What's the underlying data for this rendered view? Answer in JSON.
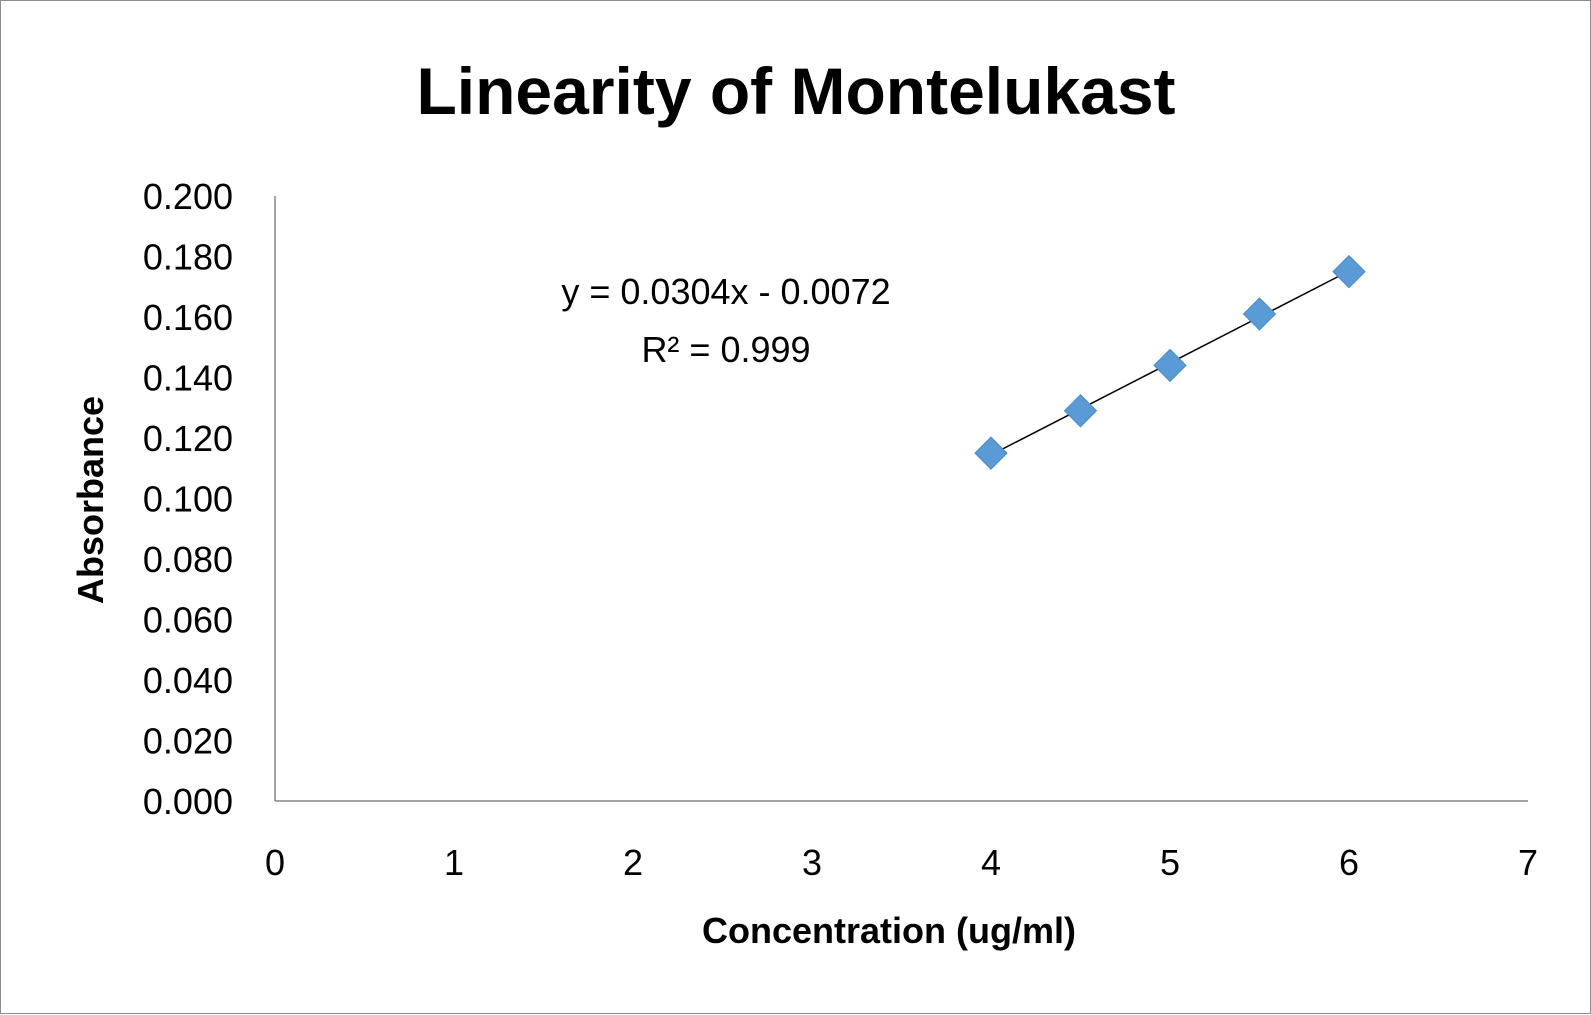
{
  "chart_data": {
    "type": "scatter",
    "title": "Linearity of Montelukast",
    "xlabel": "Concentration (ug/ml)",
    "ylabel": "Absorbance",
    "xlim": [
      0,
      7
    ],
    "ylim": [
      0,
      0.2
    ],
    "x_ticks": [
      "0",
      "1",
      "2",
      "3",
      "4",
      "5",
      "6",
      "7"
    ],
    "y_ticks": [
      "0.000",
      "0.020",
      "0.040",
      "0.060",
      "0.080",
      "0.100",
      "0.120",
      "0.140",
      "0.160",
      "0.180",
      "0.200"
    ],
    "grid": false,
    "legend": "none",
    "series": [
      {
        "x": [
          4,
          4.5,
          5,
          5.5,
          6
        ],
        "y": [
          0.115,
          0.129,
          0.144,
          0.161,
          0.175
        ],
        "marker": "diamond",
        "color": "#5B9BD5"
      }
    ],
    "trendline": {
      "type": "linear",
      "slope": 0.0304,
      "intercept": -0.0072,
      "x_range": [
        4,
        6
      ],
      "color": "#000000",
      "equation_label": "y = 0.0304x - 0.0072",
      "r2_label": "R² = 0.999"
    }
  }
}
